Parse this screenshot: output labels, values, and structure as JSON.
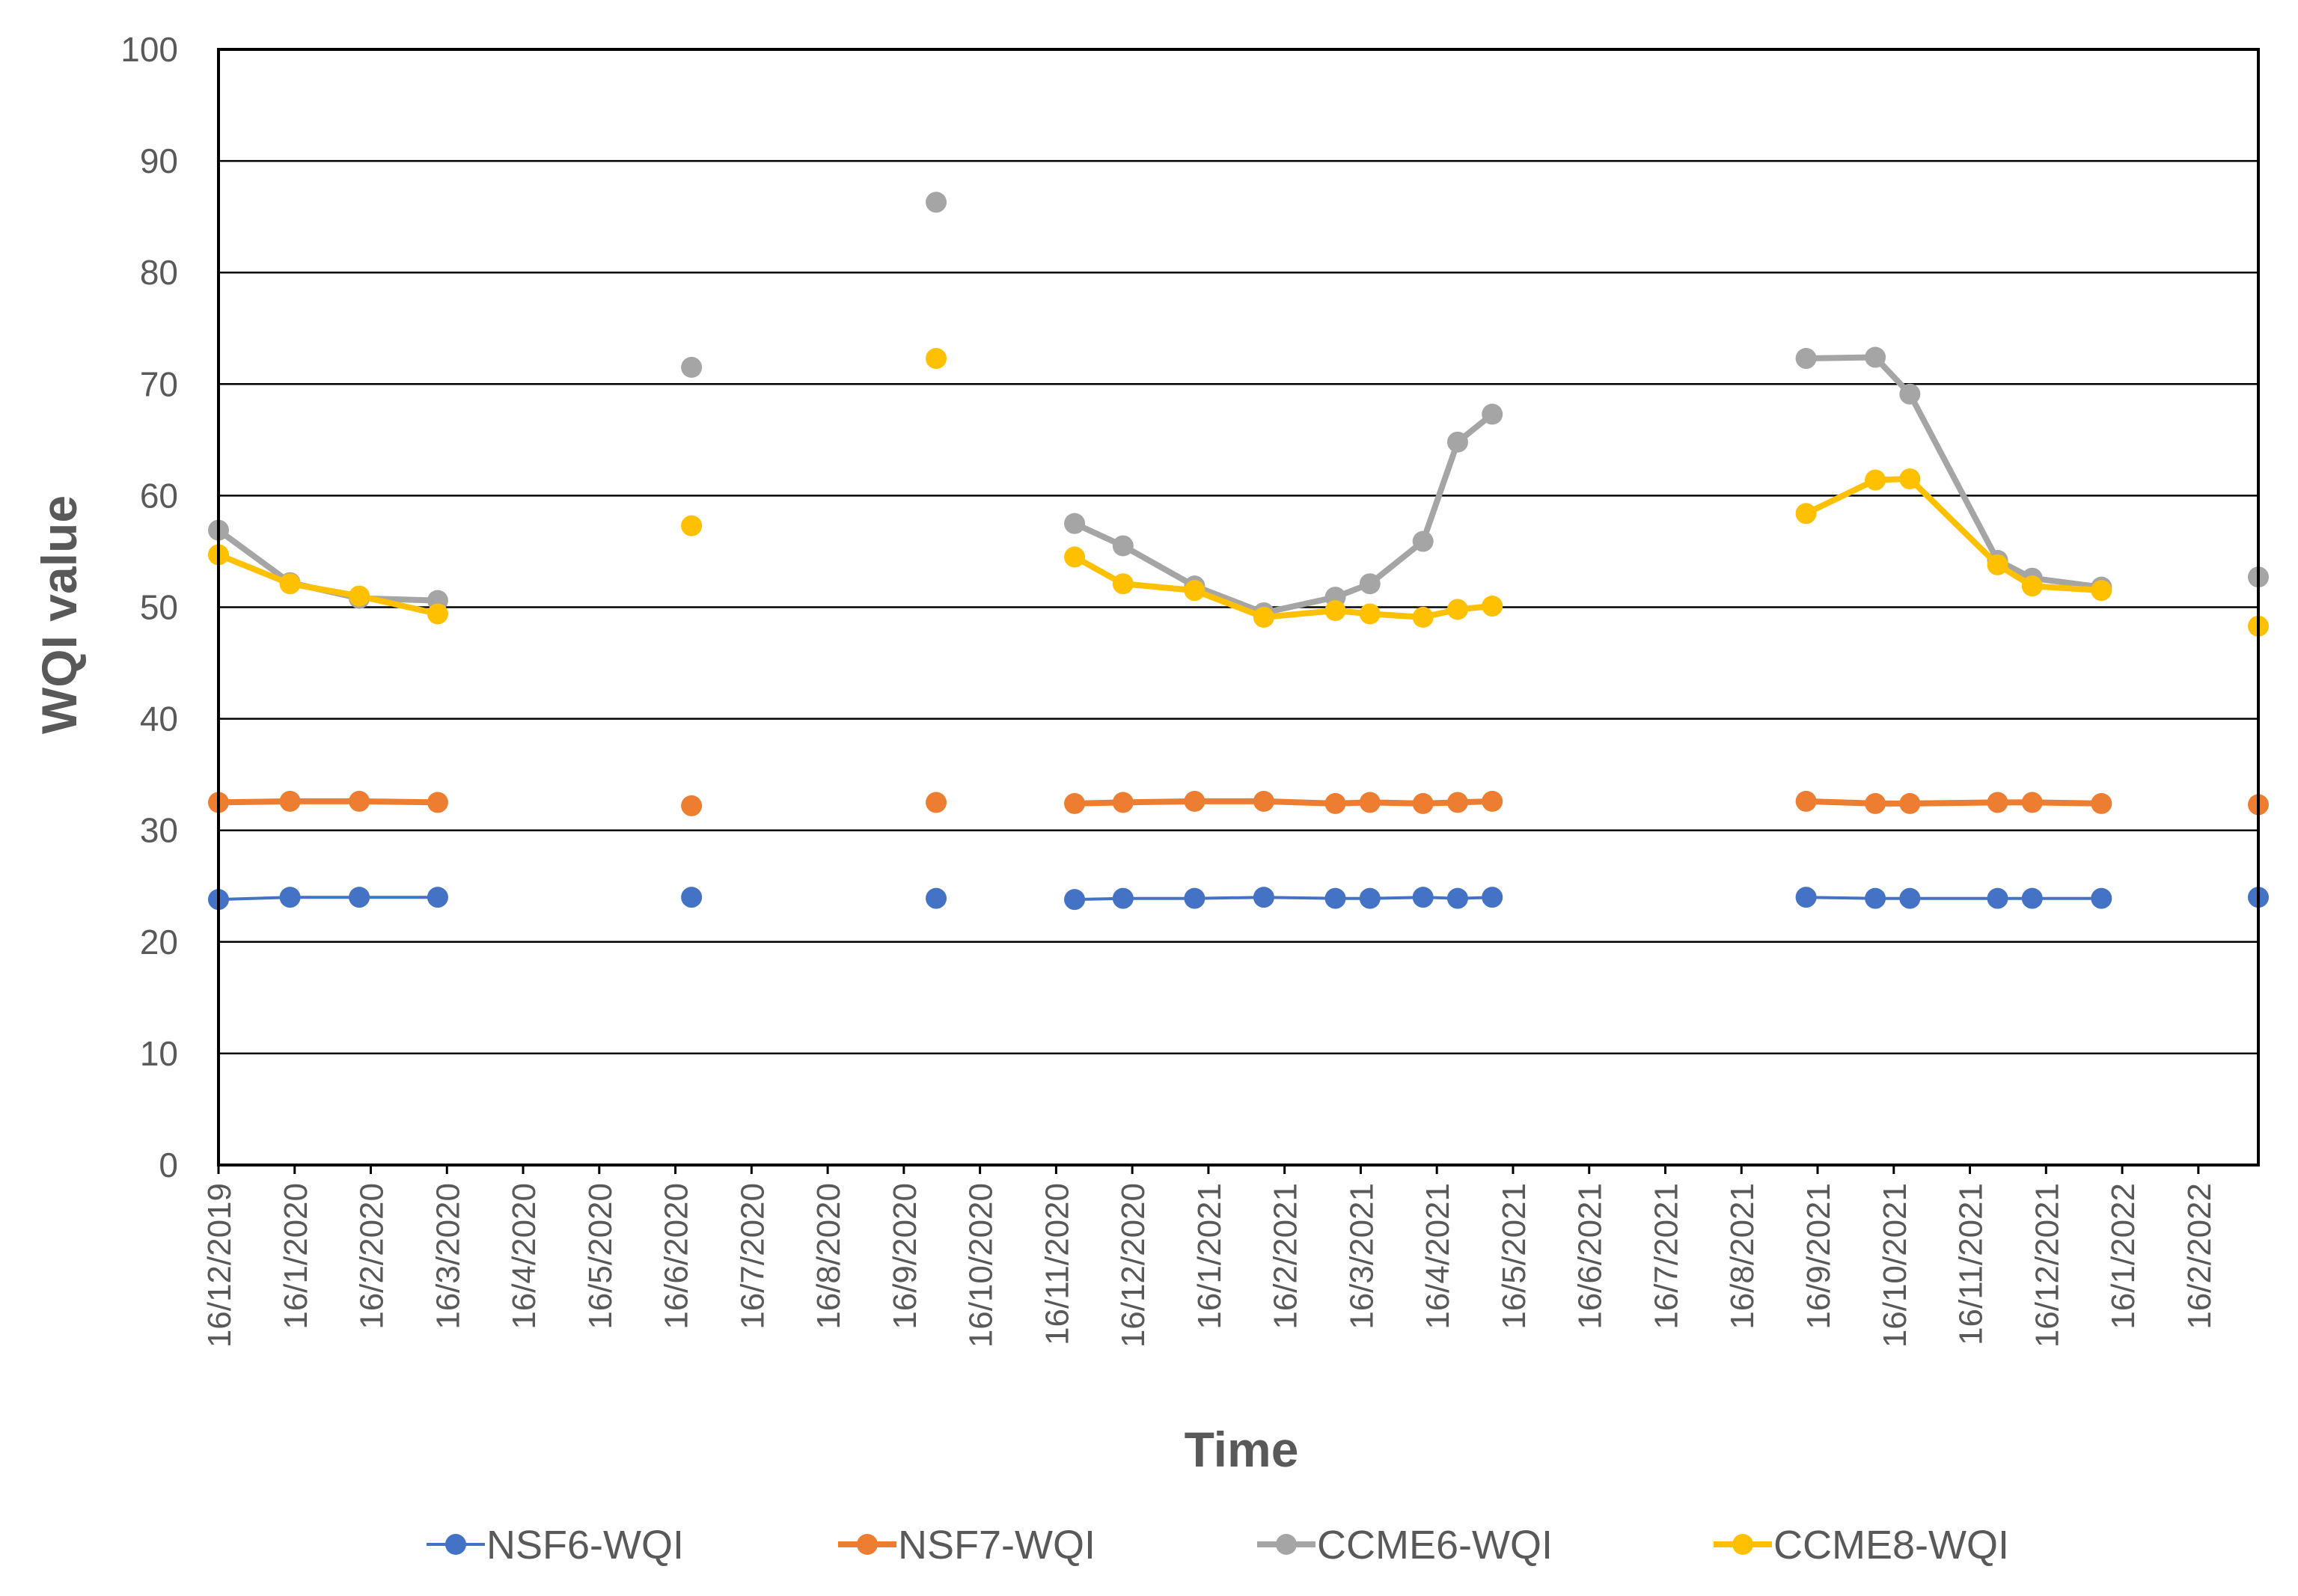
{
  "chart_data": {
    "type": "line",
    "title": "",
    "xlabel": "Time",
    "ylabel": "WQI value",
    "ylim": [
      0,
      100
    ],
    "yticks": [
      0,
      10,
      20,
      30,
      40,
      50,
      60,
      70,
      80,
      90,
      100
    ],
    "x_range_days": [
      0,
      442
    ],
    "x_tick_labels": [
      {
        "label": "16/12/2019",
        "day": 0
      },
      {
        "label": "16/1/2020",
        "day": 16.5
      },
      {
        "label": "16/2/2020",
        "day": 33
      },
      {
        "label": "16/3/2020",
        "day": 49.5
      },
      {
        "label": "16/4/2020",
        "day": 66
      },
      {
        "label": "16/5/2020",
        "day": 82.5
      },
      {
        "label": "16/6/2020",
        "day": 99
      },
      {
        "label": "16/7/2020",
        "day": 115.5
      },
      {
        "label": "16/8/2020",
        "day": 132
      },
      {
        "label": "16/9/2020",
        "day": 148.5
      },
      {
        "label": "16/10/2020",
        "day": 165
      },
      {
        "label": "16/11/2020",
        "day": 181.5
      },
      {
        "label": "16/12/2020",
        "day": 198
      },
      {
        "label": "16/1/2021",
        "day": 214.5
      },
      {
        "label": "16/2/2021",
        "day": 231
      },
      {
        "label": "16/3/2021",
        "day": 247.5
      },
      {
        "label": "16/4/2021",
        "day": 264
      },
      {
        "label": "16/5/2021",
        "day": 280.5
      },
      {
        "label": "16/6/2021",
        "day": 297
      },
      {
        "label": "16/7/2021",
        "day": 313.5
      },
      {
        "label": "16/8/2021",
        "day": 330
      },
      {
        "label": "16/9/2021",
        "day": 346.5
      },
      {
        "label": "16/10/2021",
        "day": 363
      },
      {
        "label": "16/11/2021",
        "day": 379.5
      },
      {
        "label": "16/12/2021",
        "day": 396
      },
      {
        "label": "16/1/2022",
        "day": 412.5
      },
      {
        "label": "16/2/2022",
        "day": 429
      }
    ],
    "series": [
      {
        "name": "NSF6-WQI",
        "color": "#4472C4",
        "line_width": 4,
        "segments": [
          [
            [
              0,
              23.8
            ],
            [
              15.5,
              24.0
            ],
            [
              30.5,
              24.0
            ],
            [
              47.5,
              24.0
            ]
          ],
          [
            [
              102.5,
              24.0
            ]
          ],
          [
            [
              155.5,
              23.9
            ]
          ],
          [
            [
              185.5,
              23.8
            ],
            [
              196,
              23.9
            ],
            [
              211.5,
              23.9
            ],
            [
              226.5,
              24.0
            ],
            [
              242,
              23.9
            ],
            [
              249.5,
              23.9
            ],
            [
              261,
              24.0
            ],
            [
              268.5,
              23.9
            ],
            [
              276,
              24.0
            ]
          ],
          [
            [
              344,
              24.0
            ],
            [
              359,
              23.9
            ],
            [
              366.5,
              23.9
            ],
            [
              385.5,
              23.9
            ],
            [
              393,
              23.9
            ],
            [
              408,
              23.9
            ]
          ],
          [
            [
              442,
              24.0
            ]
          ]
        ]
      },
      {
        "name": "NSF7-WQI",
        "color": "#ED7D31",
        "line_width": 8,
        "segments": [
          [
            [
              0,
              32.5
            ],
            [
              15.5,
              32.6
            ],
            [
              30.5,
              32.6
            ],
            [
              47.5,
              32.5
            ]
          ],
          [
            [
              102.5,
              32.2
            ]
          ],
          [
            [
              155.5,
              32.5
            ]
          ],
          [
            [
              185.5,
              32.4
            ],
            [
              196,
              32.5
            ],
            [
              211.5,
              32.6
            ],
            [
              226.5,
              32.6
            ],
            [
              242,
              32.4
            ],
            [
              249.5,
              32.5
            ],
            [
              261,
              32.4
            ],
            [
              268.5,
              32.5
            ],
            [
              276,
              32.6
            ]
          ],
          [
            [
              344,
              32.6
            ],
            [
              359,
              32.4
            ],
            [
              366.5,
              32.4
            ],
            [
              385.5,
              32.5
            ],
            [
              393,
              32.5
            ],
            [
              408,
              32.4
            ]
          ],
          [
            [
              442,
              32.3
            ]
          ]
        ]
      },
      {
        "name": "CCME6-WQI",
        "color": "#A5A5A5",
        "line_width": 8,
        "segments": [
          [
            [
              0,
              56.9
            ],
            [
              15.5,
              52.2
            ],
            [
              30.5,
              50.8
            ],
            [
              47.5,
              50.6
            ]
          ],
          [
            [
              102.5,
              71.5
            ]
          ],
          [
            [
              155.5,
              86.3
            ]
          ],
          [
            [
              185.5,
              57.5
            ],
            [
              196,
              55.5
            ],
            [
              211.5,
              51.9
            ],
            [
              226.5,
              49.5
            ],
            [
              242,
              50.9
            ],
            [
              249.5,
              52.1
            ],
            [
              261,
              55.9
            ],
            [
              268.5,
              64.8
            ],
            [
              276,
              67.3
            ]
          ],
          [
            [
              344,
              72.3
            ],
            [
              359,
              72.4
            ],
            [
              366.5,
              69.1
            ],
            [
              385.5,
              54.2
            ],
            [
              393,
              52.6
            ],
            [
              408,
              51.8
            ]
          ],
          [
            [
              442,
              52.7
            ]
          ]
        ]
      },
      {
        "name": "CCME8-WQI",
        "color": "#FFC000",
        "line_width": 8,
        "segments": [
          [
            [
              0,
              54.7
            ],
            [
              15.5,
              52.1
            ],
            [
              30.5,
              51.0
            ],
            [
              47.5,
              49.4
            ]
          ],
          [
            [
              102.5,
              57.3
            ]
          ],
          [
            [
              155.5,
              72.3
            ]
          ],
          [
            [
              185.5,
              54.5
            ],
            [
              196,
              52.1
            ],
            [
              211.5,
              51.5
            ],
            [
              226.5,
              49.1
            ],
            [
              242,
              49.7
            ],
            [
              249.5,
              49.4
            ],
            [
              261,
              49.1
            ],
            [
              268.5,
              49.8
            ],
            [
              276,
              50.1
            ]
          ],
          [
            [
              344,
              58.4
            ],
            [
              359,
              61.4
            ],
            [
              366.5,
              61.5
            ],
            [
              385.5,
              53.8
            ],
            [
              393,
              51.9
            ],
            [
              408,
              51.5
            ]
          ],
          [
            [
              442,
              48.3
            ]
          ]
        ]
      }
    ],
    "grid": true,
    "legend_position": "bottom"
  }
}
